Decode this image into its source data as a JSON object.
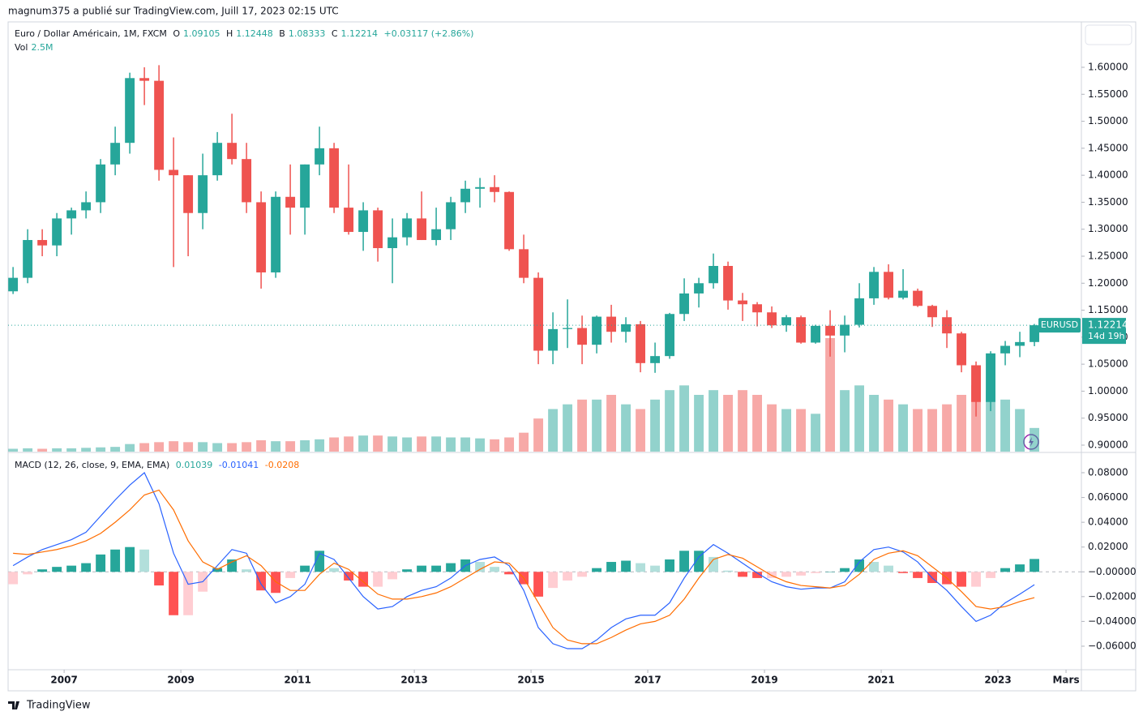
{
  "header": {
    "published": "magnum375 a publié sur TradingView.com, Juill 17, 2023 02:15 UTC",
    "brand": "TradingView"
  },
  "chart_data": [
    {
      "type": "candlestick",
      "title": "Euro / Dollar Américain, 1M, FXCM",
      "ohlc_labels": [
        "O",
        "H",
        "B",
        "C"
      ],
      "change": "+0.03117 (+2.86%)",
      "symbol": "EURUSD",
      "countdown": "14d 19h",
      "up_color": "#26a69a",
      "down_color": "#ef5350",
      "volume_up_color": "#26a69a80",
      "volume_down_color": "#ef535080",
      "x": [
        2006.125,
        2006.375,
        2006.625,
        2006.875,
        2007.125,
        2007.375,
        2007.625,
        2007.875,
        2008.125,
        2008.375,
        2008.625,
        2008.875,
        2009.125,
        2009.375,
        2009.625,
        2009.875,
        2010.125,
        2010.375,
        2010.625,
        2010.875,
        2011.125,
        2011.375,
        2011.625,
        2011.875,
        2012.125,
        2012.375,
        2012.625,
        2012.875,
        2013.125,
        2013.375,
        2013.625,
        2013.875,
        2014.125,
        2014.375,
        2014.625,
        2014.875,
        2015.125,
        2015.375,
        2015.625,
        2015.875,
        2016.125,
        2016.375,
        2016.625,
        2016.875,
        2017.125,
        2017.375,
        2017.625,
        2017.875,
        2018.125,
        2018.375,
        2018.625,
        2018.875,
        2019.125,
        2019.375,
        2019.625,
        2019.875,
        2020.125,
        2020.375,
        2020.625,
        2020.875,
        2021.125,
        2021.375,
        2021.625,
        2021.875,
        2022.125,
        2022.375,
        2022.625,
        2022.875,
        2023.125,
        2023.375,
        2023.625
      ],
      "open": [
        1.185,
        1.21,
        1.28,
        1.27,
        1.32,
        1.335,
        1.35,
        1.42,
        1.46,
        1.58,
        1.575,
        1.41,
        1.4,
        1.33,
        1.4,
        1.46,
        1.43,
        1.35,
        1.22,
        1.36,
        1.34,
        1.42,
        1.45,
        1.34,
        1.295,
        1.335,
        1.265,
        1.285,
        1.32,
        1.28,
        1.3,
        1.35,
        1.375,
        1.378,
        1.369,
        1.263,
        1.21,
        1.075,
        1.115,
        1.117,
        1.086,
        1.138,
        1.11,
        1.124,
        1.052,
        1.065,
        1.143,
        1.181,
        1.2,
        1.232,
        1.168,
        1.161,
        1.146,
        1.122,
        1.137,
        1.09,
        1.121,
        1.103,
        1.123,
        1.172,
        1.221,
        1.173,
        1.186,
        1.158,
        1.137,
        1.107,
        1.048,
        0.98,
        1.07,
        1.084,
        1.09105
      ],
      "high": [
        1.23,
        1.3,
        1.3,
        1.33,
        1.34,
        1.37,
        1.43,
        1.49,
        1.59,
        1.6,
        1.604,
        1.47,
        1.4,
        1.44,
        1.48,
        1.514,
        1.46,
        1.37,
        1.37,
        1.42,
        1.42,
        1.49,
        1.46,
        1.42,
        1.35,
        1.34,
        1.32,
        1.33,
        1.37,
        1.34,
        1.36,
        1.39,
        1.395,
        1.4,
        1.37,
        1.29,
        1.22,
        1.146,
        1.17,
        1.14,
        1.14,
        1.16,
        1.137,
        1.13,
        1.09,
        1.145,
        1.209,
        1.21,
        1.255,
        1.24,
        1.182,
        1.165,
        1.157,
        1.141,
        1.14,
        1.123,
        1.15,
        1.14,
        1.2,
        1.23,
        1.235,
        1.226,
        1.19,
        1.16,
        1.15,
        1.11,
        1.055,
        1.074,
        1.093,
        1.11,
        1.12448
      ],
      "low": [
        1.18,
        1.2,
        1.25,
        1.25,
        1.29,
        1.32,
        1.33,
        1.4,
        1.44,
        1.53,
        1.39,
        1.23,
        1.25,
        1.3,
        1.39,
        1.42,
        1.33,
        1.19,
        1.21,
        1.29,
        1.29,
        1.4,
        1.33,
        1.29,
        1.26,
        1.24,
        1.2,
        1.27,
        1.28,
        1.27,
        1.28,
        1.33,
        1.34,
        1.35,
        1.26,
        1.2,
        1.05,
        1.05,
        1.08,
        1.05,
        1.07,
        1.09,
        1.09,
        1.035,
        1.034,
        1.06,
        1.13,
        1.155,
        1.19,
        1.151,
        1.13,
        1.12,
        1.117,
        1.11,
        1.088,
        1.088,
        1.064,
        1.072,
        1.118,
        1.16,
        1.17,
        1.17,
        1.156,
        1.119,
        1.08,
        1.035,
        0.953,
        0.963,
        1.048,
        1.063,
        1.08333
      ],
      "close": [
        1.21,
        1.28,
        1.27,
        1.32,
        1.335,
        1.35,
        1.42,
        1.46,
        1.58,
        1.575,
        1.41,
        1.4,
        1.33,
        1.4,
        1.46,
        1.43,
        1.35,
        1.22,
        1.36,
        1.34,
        1.42,
        1.45,
        1.34,
        1.295,
        1.335,
        1.265,
        1.285,
        1.32,
        1.28,
        1.3,
        1.35,
        1.375,
        1.378,
        1.369,
        1.263,
        1.21,
        1.075,
        1.115,
        1.117,
        1.086,
        1.138,
        1.11,
        1.124,
        1.052,
        1.065,
        1.143,
        1.181,
        1.2,
        1.232,
        1.168,
        1.161,
        1.146,
        1.122,
        1.137,
        1.09,
        1.121,
        1.103,
        1.123,
        1.172,
        1.221,
        1.173,
        1.186,
        1.158,
        1.137,
        1.107,
        1.048,
        0.98,
        1.07,
        1.084,
        1.091,
        1.12214
      ],
      "volume_name": "Vol",
      "volume_label": "2.5M",
      "volume": [
        0.3,
        0.35,
        0.3,
        0.35,
        0.35,
        0.4,
        0.45,
        0.5,
        0.8,
        0.9,
        1.0,
        1.1,
        1.0,
        1.0,
        0.9,
        0.9,
        1.0,
        1.2,
        1.1,
        1.1,
        1.2,
        1.3,
        1.5,
        1.6,
        1.7,
        1.7,
        1.6,
        1.5,
        1.6,
        1.6,
        1.5,
        1.5,
        1.4,
        1.3,
        1.5,
        2.0,
        3.5,
        4.5,
        5.0,
        5.5,
        5.5,
        6.0,
        5.0,
        4.5,
        5.5,
        6.5,
        7.0,
        6.0,
        6.5,
        6.0,
        6.5,
        6.0,
        5.0,
        4.5,
        4.5,
        4.0,
        12.0,
        6.5,
        7.0,
        6.0,
        5.5,
        5.0,
        4.5,
        4.5,
        5.0,
        6.0,
        7.0,
        6.5,
        5.5,
        4.5,
        2.5
      ],
      "xlim": [
        2006.04,
        2024.43
      ],
      "xticks": [
        2007,
        2009,
        2011,
        2013,
        2015,
        2017,
        2019,
        2021,
        2023,
        {
          "value": 2024.1667,
          "label": "Mars"
        }
      ],
      "ylim": [
        0.888,
        1.6826
      ],
      "yticks": [
        {
          "value": 0.9,
          "label": "0.90000"
        },
        {
          "value": 0.95,
          "label": "0.95000"
        },
        {
          "value": 1.0,
          "label": "1.00000"
        },
        {
          "value": 1.05,
          "label": "1.05000"
        },
        {
          "value": 1.1,
          "label": "1.10000"
        },
        {
          "value": 1.15,
          "label": "1.15000"
        },
        {
          "value": 1.2,
          "label": "1.20000"
        },
        {
          "value": 1.25,
          "label": "1.25000"
        },
        {
          "value": 1.3,
          "label": "1.30000"
        },
        {
          "value": 1.35,
          "label": "1.35000"
        },
        {
          "value": 1.4,
          "label": "1.40000"
        },
        {
          "value": 1.45,
          "label": "1.45000"
        },
        {
          "value": 1.5,
          "label": "1.50000"
        },
        {
          "value": 1.55,
          "label": "1.55000"
        },
        {
          "value": 1.6,
          "label": "1.60000"
        }
      ]
    },
    {
      "type": "macd",
      "title": "MACD (12, 26, close, 9, EMA, EMA)",
      "histogram_colors": [
        "#26a69a",
        "#b2dfdb",
        "#ffcdd2",
        "#ff5252"
      ],
      "macd_color": "#2962ff",
      "signal_color": "#ff6d00",
      "histogram": [
        -0.01,
        -0.002,
        0.002,
        0.004,
        0.005,
        0.007,
        0.014,
        0.018,
        0.02,
        0.018,
        -0.011,
        -0.035,
        -0.035,
        -0.016,
        0.003,
        0.01,
        0.002,
        -0.015,
        -0.017,
        -0.005,
        0.005,
        0.017,
        0.003,
        -0.007,
        -0.012,
        -0.012,
        -0.006,
        0.002,
        0.005,
        0.005,
        0.007,
        0.01,
        0.008,
        0.004,
        -0.002,
        -0.01,
        -0.02,
        -0.013,
        -0.007,
        -0.004,
        0.003,
        0.008,
        0.009,
        0.007,
        0.005,
        0.01,
        0.017,
        0.017,
        0.012,
        0.001,
        -0.004,
        -0.005,
        -0.005,
        -0.004,
        -0.003,
        -0.001,
        0,
        0.003,
        0.01,
        0.008,
        0.005,
        -0.001,
        -0.005,
        -0.009,
        -0.01,
        -0.012,
        -0.012,
        -0.005,
        0.003,
        0.006,
        0.01039
      ],
      "macd": [
        0.005,
        0.012,
        0.018,
        0.022,
        0.026,
        0.032,
        0.045,
        0.058,
        0.07,
        0.08,
        0.055,
        0.015,
        -0.01,
        -0.008,
        0.005,
        0.018,
        0.015,
        -0.01,
        -0.025,
        -0.02,
        -0.01,
        0.015,
        0.01,
        -0.005,
        -0.02,
        -0.03,
        -0.028,
        -0.02,
        -0.015,
        -0.012,
        -0.005,
        0.005,
        0.01,
        0.012,
        0.005,
        -0.015,
        -0.045,
        -0.058,
        -0.062,
        -0.062,
        -0.055,
        -0.045,
        -0.038,
        -0.035,
        -0.035,
        -0.025,
        -0.005,
        0.012,
        0.022,
        0.015,
        0.007,
        -0.001,
        -0.008,
        -0.012,
        -0.014,
        -0.013,
        -0.013,
        -0.008,
        0.008,
        0.018,
        0.02,
        0.016,
        0.008,
        -0.005,
        -0.015,
        -0.028,
        -0.04,
        -0.035,
        -0.025,
        -0.018,
        -0.01041
      ],
      "signal": [
        0.015,
        0.014,
        0.016,
        0.018,
        0.021,
        0.025,
        0.031,
        0.04,
        0.05,
        0.062,
        0.066,
        0.05,
        0.025,
        0.008,
        0.002,
        0.008,
        0.013,
        0.005,
        -0.008,
        -0.015,
        -0.015,
        -0.002,
        0.007,
        0.002,
        -0.008,
        -0.018,
        -0.022,
        -0.022,
        -0.02,
        -0.017,
        -0.012,
        -0.005,
        0.002,
        0.008,
        0.007,
        -0.005,
        -0.025,
        -0.045,
        -0.055,
        -0.058,
        -0.058,
        -0.053,
        -0.047,
        -0.042,
        -0.04,
        -0.035,
        -0.022,
        -0.005,
        0.01,
        0.014,
        0.011,
        0.004,
        -0.003,
        -0.008,
        -0.011,
        -0.012,
        -0.013,
        -0.011,
        -0.002,
        0.01,
        0.015,
        0.017,
        0.013,
        0.004,
        -0.005,
        -0.016,
        -0.028,
        -0.03,
        -0.028,
        -0.024,
        -0.0208
      ],
      "ylim": [
        -0.079,
        0.0944
      ],
      "yticks": [
        {
          "value": -0.06,
          "label": "−0.06000"
        },
        {
          "value": -0.04,
          "label": "−0.04000"
        },
        {
          "value": -0.02,
          "label": "−0.02000"
        },
        {
          "value": 0,
          "label": "−0.00000"
        },
        {
          "value": 0.02,
          "label": "0.02000"
        },
        {
          "value": 0.04,
          "label": "0.04000"
        },
        {
          "value": 0.06,
          "label": "0.06000"
        },
        {
          "value": 0.08,
          "label": "0.08000"
        }
      ]
    }
  ]
}
